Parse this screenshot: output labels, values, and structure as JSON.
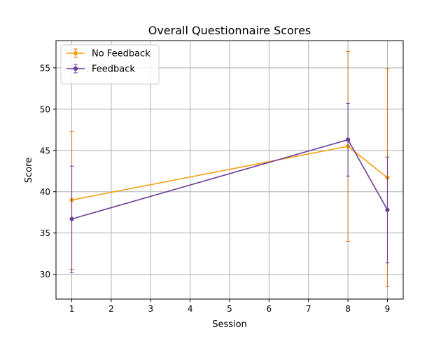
{
  "chart_data": {
    "type": "line",
    "title": "Overall Questionnaire Scores",
    "xlabel": "Session",
    "ylabel": "Score",
    "xlim": [
      0.6,
      9.4
    ],
    "ylim": [
      27.0,
      58.3
    ],
    "x_ticks": [
      1,
      2,
      3,
      4,
      5,
      6,
      7,
      8,
      9
    ],
    "y_ticks": [
      30,
      35,
      40,
      45,
      50,
      55
    ],
    "grid": true,
    "legend_position": "upper-left",
    "series": [
      {
        "name": "No Feedback",
        "color": "#f5a00f",
        "error_color": "#e0701a",
        "marker": "circle",
        "x": [
          1,
          8,
          9
        ],
        "values": [
          39.0,
          45.5,
          41.7
        ],
        "err_low": [
          30.6,
          34.0,
          28.5
        ],
        "err_high": [
          47.3,
          57.0,
          54.9
        ]
      },
      {
        "name": "Feedback",
        "color": "#6a3d9a",
        "error_color": "#6a3d9a",
        "marker": "circle",
        "x": [
          1,
          8,
          9
        ],
        "values": [
          36.7,
          46.3,
          37.8
        ],
        "err_low": [
          30.2,
          41.9,
          31.4
        ],
        "err_high": [
          43.1,
          50.7,
          44.2
        ]
      }
    ]
  }
}
